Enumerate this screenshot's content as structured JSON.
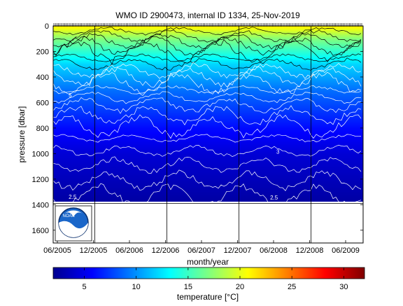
{
  "chart_data": {
    "type": "heatmap",
    "title": "WMO ID 2900473, internal ID 1334, 25-Nov-2019",
    "xlabel": "month/year",
    "ylabel": "pressure [dbar]",
    "x_tick_labels": [
      "06/2005",
      "12/2005",
      "06/2006",
      "12/2006",
      "06/2007",
      "12/2007",
      "06/2008",
      "12/2008",
      "06/2009"
    ],
    "y_tick_labels": [
      "0",
      "200",
      "400",
      "600",
      "800",
      "1000",
      "1200",
      "1400",
      "1600"
    ],
    "ylim": [
      1700,
      0
    ],
    "profile_max_depth": 1390,
    "time_boundaries": [
      "12/2005",
      "12/2006",
      "12/2007",
      "12/2008"
    ],
    "colorbar": {
      "label": "temperature [°C]",
      "range": [
        2,
        32
      ],
      "ticks": [
        "5",
        "10",
        "15",
        "20",
        "25",
        "30"
      ],
      "colormap": "jet"
    },
    "isotherm_labels": [
      "5",
      "3",
      "2.5",
      "2.5"
    ],
    "temperature_field": [
      {
        "depth": 0,
        "value": 21
      },
      {
        "depth": 100,
        "value": 17
      },
      {
        "depth": 300,
        "value": 12
      },
      {
        "depth": 500,
        "value": 9
      },
      {
        "depth": 800,
        "value": 6
      },
      {
        "depth": 1000,
        "value": 4.5
      },
      {
        "depth": 1390,
        "value": 3
      }
    ]
  },
  "logo": {
    "name": "noaa-logo",
    "text": "NOAA"
  }
}
